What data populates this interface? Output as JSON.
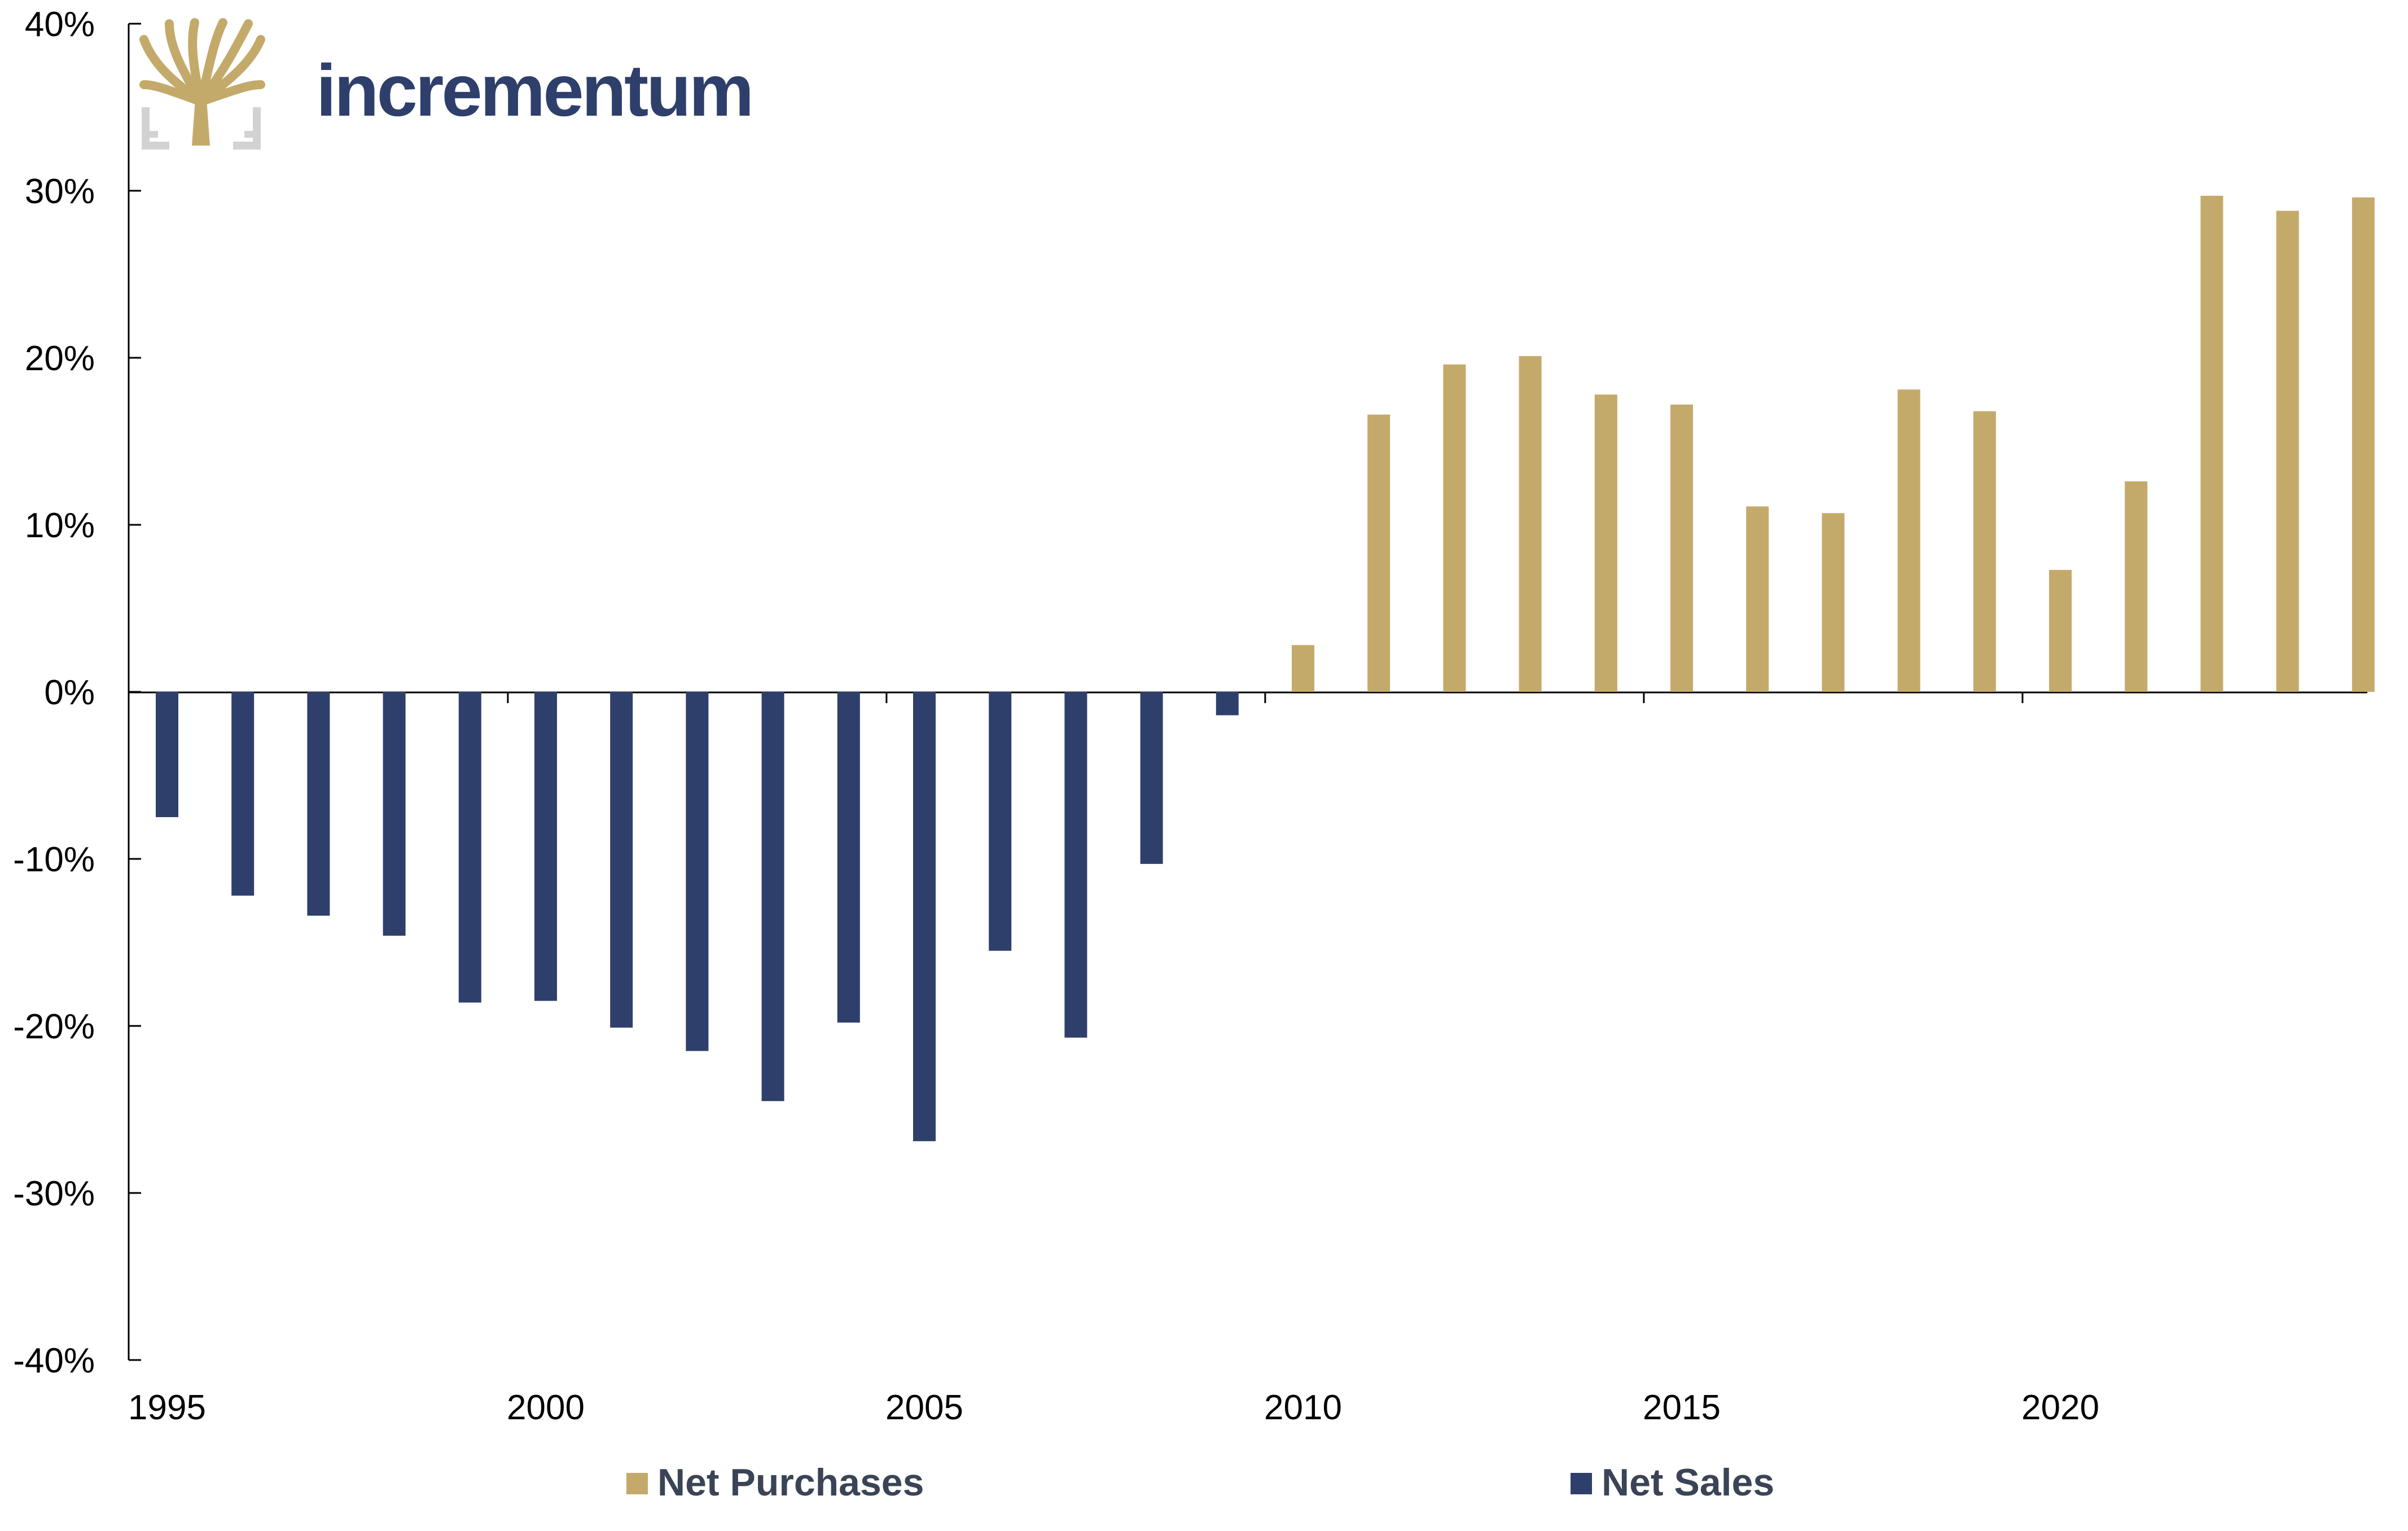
{
  "brand": {
    "name": "incrementum",
    "logo_icon": "tree-logo-icon",
    "text_color": "#2e3f6b",
    "logo_color": "#c4aa6a",
    "frame_color": "#d2d2d2"
  },
  "chart_data": {
    "type": "bar",
    "title": "",
    "xlabel": "",
    "ylabel": "",
    "x": [
      1995,
      1996,
      1997,
      1998,
      1999,
      2000,
      2001,
      2002,
      2003,
      2004,
      2005,
      2006,
      2007,
      2008,
      2009,
      2010,
      2011,
      2012,
      2013,
      2014,
      2015,
      2016,
      2017,
      2018,
      2019,
      2020,
      2021,
      2022,
      2023,
      2024
    ],
    "values": [
      -7.5,
      -12.2,
      -13.4,
      -14.6,
      -18.6,
      -18.5,
      -20.1,
      -21.5,
      -24.5,
      -19.8,
      -26.9,
      -15.5,
      -20.7,
      -10.3,
      -1.4,
      2.8,
      16.6,
      19.6,
      20.1,
      17.8,
      17.2,
      11.1,
      10.7,
      18.1,
      16.8,
      7.3,
      12.6,
      29.7,
      28.8,
      29.6
    ],
    "ylim": [
      -40,
      40
    ],
    "y_ticks": [
      40,
      30,
      20,
      10,
      0,
      -10,
      -20,
      -30,
      -40
    ],
    "y_tick_labels": [
      "40%",
      "30%",
      "20%",
      "10%",
      "0%",
      "-10%",
      "-20%",
      "-30%",
      "-40%"
    ],
    "x_tick_labels": [
      "1995",
      "2000",
      "2005",
      "2010",
      "2015",
      "2020"
    ],
    "x_tick_years": [
      1995,
      2000,
      2005,
      2010,
      2015,
      2020
    ],
    "grid": false,
    "legend_position": "bottom",
    "legend": [
      {
        "label": "Net Purchases",
        "color": "#c4aa6a"
      },
      {
        "label": "Net Sales",
        "color": "#2e3f6b"
      }
    ],
    "positive_color": "#c4aa6a",
    "negative_color": "#2e3f6b"
  }
}
